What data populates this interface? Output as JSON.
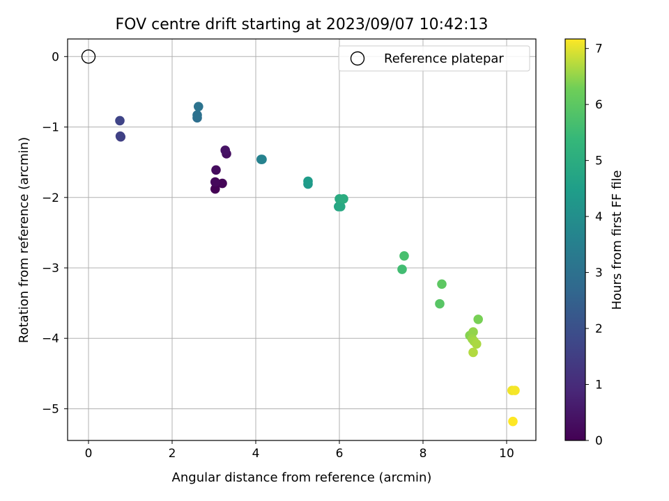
{
  "chart_data": {
    "type": "scatter",
    "title": "FOV centre drift starting at 2023/09/07 10:42:13",
    "xlabel": "Angular distance from reference (arcmin)",
    "ylabel": "Rotation from reference (arcmin)",
    "xlim": [
      -0.5,
      10.7
    ],
    "ylim": [
      -5.45,
      0.25
    ],
    "xticks": [
      0,
      2,
      4,
      6,
      8,
      10
    ],
    "yticks": [
      0,
      -1,
      -2,
      -3,
      -4,
      -5
    ],
    "grid": true,
    "legend": {
      "position": "top-right",
      "entries": [
        "Reference platepar"
      ]
    },
    "reference_point": {
      "x": 0,
      "y": 0,
      "label": "Reference platepar"
    },
    "colorbar": {
      "label": "Hours from first FF file",
      "range": [
        0,
        7.17
      ],
      "ticks": [
        0,
        1,
        2,
        3,
        4,
        5,
        6,
        7
      ],
      "colormap": "viridis"
    },
    "series": [
      {
        "name": "FOV centre drift",
        "points": [
          {
            "x": 3.03,
            "y": -1.88,
            "hours": 0.0
          },
          {
            "x": 3.2,
            "y": -1.8,
            "hours": 0.08
          },
          {
            "x": 3.03,
            "y": -1.78,
            "hours": 0.17
          },
          {
            "x": 3.05,
            "y": -1.61,
            "hours": 0.25
          },
          {
            "x": 3.3,
            "y": -1.38,
            "hours": 0.33
          },
          {
            "x": 3.27,
            "y": -1.33,
            "hours": 0.42
          },
          {
            "x": 0.77,
            "y": -1.14,
            "hours": 1.5
          },
          {
            "x": 0.76,
            "y": -1.13,
            "hours": 1.58
          },
          {
            "x": 0.75,
            "y": -0.91,
            "hours": 1.67
          },
          {
            "x": 2.6,
            "y": -0.87,
            "hours": 2.92
          },
          {
            "x": 2.6,
            "y": -0.83,
            "hours": 3.0
          },
          {
            "x": 2.63,
            "y": -0.71,
            "hours": 3.08
          },
          {
            "x": 4.13,
            "y": -1.46,
            "hours": 3.5
          },
          {
            "x": 4.15,
            "y": -1.46,
            "hours": 3.58
          },
          {
            "x": 5.25,
            "y": -1.81,
            "hours": 4.33
          },
          {
            "x": 5.25,
            "y": -1.77,
            "hours": 4.42
          },
          {
            "x": 5.98,
            "y": -2.13,
            "hours": 4.75
          },
          {
            "x": 6.03,
            "y": -2.13,
            "hours": 4.83
          },
          {
            "x": 6.0,
            "y": -2.02,
            "hours": 4.92
          },
          {
            "x": 6.1,
            "y": -2.02,
            "hours": 5.0
          },
          {
            "x": 7.5,
            "y": -3.02,
            "hours": 5.58
          },
          {
            "x": 7.55,
            "y": -2.83,
            "hours": 5.67
          },
          {
            "x": 8.4,
            "y": -3.51,
            "hours": 5.92
          },
          {
            "x": 8.45,
            "y": -3.23,
            "hours": 6.0
          },
          {
            "x": 9.32,
            "y": -3.73,
            "hours": 6.33
          },
          {
            "x": 9.12,
            "y": -3.96,
            "hours": 6.42
          },
          {
            "x": 9.2,
            "y": -3.91,
            "hours": 6.5
          },
          {
            "x": 9.18,
            "y": -4.01,
            "hours": 6.55
          },
          {
            "x": 9.22,
            "y": -4.04,
            "hours": 6.6
          },
          {
            "x": 9.28,
            "y": -4.08,
            "hours": 6.65
          },
          {
            "x": 9.2,
            "y": -4.2,
            "hours": 6.7
          },
          {
            "x": 10.13,
            "y": -4.74,
            "hours": 7.08
          },
          {
            "x": 10.2,
            "y": -4.74,
            "hours": 7.12
          },
          {
            "x": 10.15,
            "y": -5.18,
            "hours": 7.17
          }
        ]
      }
    ]
  }
}
